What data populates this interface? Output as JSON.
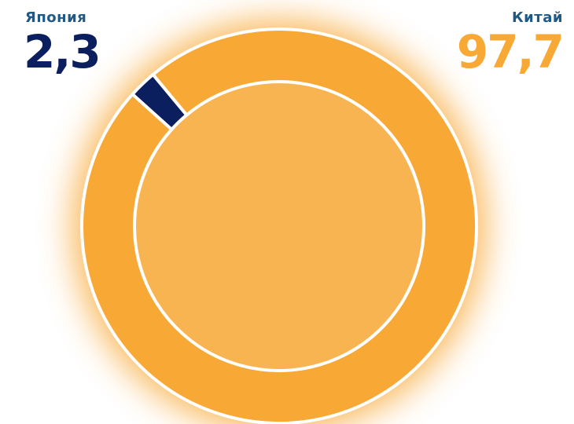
{
  "chart_data": {
    "type": "pie",
    "categories": [
      "Япония",
      "Китай"
    ],
    "values": [
      2.3,
      97.7
    ],
    "value_labels": [
      "2,3",
      "97,7"
    ],
    "colors": [
      "#0b1f5e",
      "#f8a835"
    ]
  }
}
